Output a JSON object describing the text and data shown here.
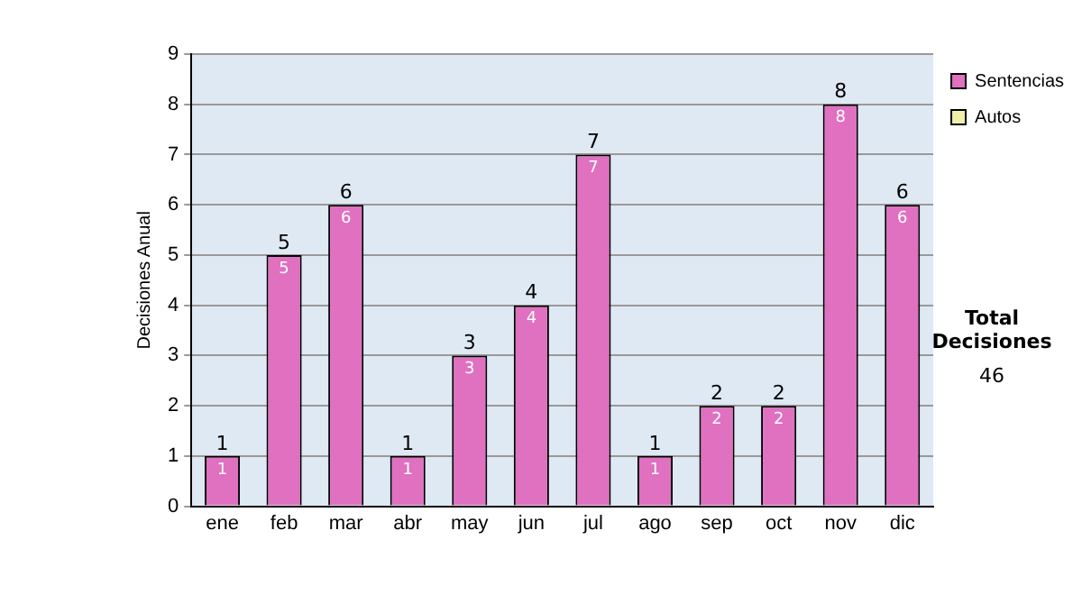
{
  "chart_data": {
    "type": "bar",
    "stacked": true,
    "ylabel": "Decisiones Anual",
    "categories": [
      "ene",
      "feb",
      "mar",
      "abr",
      "may",
      "jun",
      "jul",
      "ago",
      "sep",
      "oct",
      "nov",
      "dic"
    ],
    "series": [
      {
        "name": "Sentencias",
        "color": "#e070c0",
        "values": [
          1,
          5,
          6,
          1,
          3,
          4,
          7,
          1,
          2,
          2,
          8,
          6
        ]
      },
      {
        "name": "Autos",
        "color": "#f0f0a8",
        "values": [
          null,
          null,
          null,
          null,
          null,
          null,
          null,
          null,
          null,
          null,
          null,
          null
        ]
      }
    ],
    "totals": [
      "1",
      "5",
      "6",
      "1",
      "3",
      "4",
      "7",
      "1",
      "2",
      "2",
      "8",
      "6"
    ],
    "data_labels": true,
    "ylim": [
      0,
      9
    ],
    "yticks": [
      0,
      1,
      2,
      3,
      4,
      5,
      6,
      7,
      8,
      9
    ],
    "grid": "y",
    "legend": "top right",
    "annotations": [
      "Total Decisiones",
      "46"
    ]
  }
}
